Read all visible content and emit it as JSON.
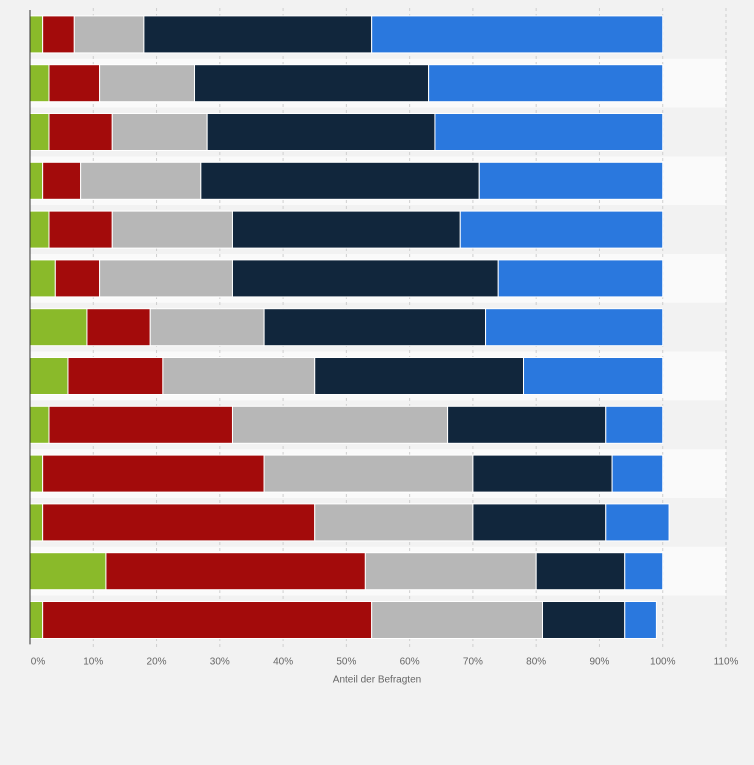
{
  "chart_data": {
    "type": "bar",
    "orientation": "horizontal",
    "stacked": true,
    "title": "",
    "xlabel": "Anteil der Befragten",
    "ylabel": "",
    "xlim": [
      0,
      110
    ],
    "x_ticks": [
      "0%",
      "10%",
      "20%",
      "30%",
      "40%",
      "50%",
      "60%",
      "70%",
      "80%",
      "90%",
      "100%",
      "110%"
    ],
    "grid": true,
    "legend": "none",
    "category_count": 13,
    "series": [
      {
        "color": "#8aba2a",
        "values": [
          2,
          3,
          3,
          2,
          3,
          4,
          9,
          6,
          3,
          2,
          2,
          12,
          2
        ]
      },
      {
        "color": "#a30b0b",
        "values": [
          5,
          8,
          10,
          6,
          10,
          7,
          10,
          15,
          29,
          35,
          43,
          41,
          52
        ]
      },
      {
        "color": "#b7b7b7",
        "values": [
          11,
          15,
          15,
          19,
          19,
          21,
          18,
          24,
          34,
          33,
          25,
          27,
          27
        ]
      },
      {
        "color": "#11263c",
        "values": [
          36,
          37,
          36,
          44,
          36,
          42,
          35,
          33,
          25,
          22,
          21,
          14,
          13
        ]
      },
      {
        "color": "#2a78de",
        "values": [
          46,
          37,
          36,
          29,
          32,
          26,
          28,
          22,
          9,
          8,
          10,
          6,
          5
        ]
      }
    ]
  }
}
